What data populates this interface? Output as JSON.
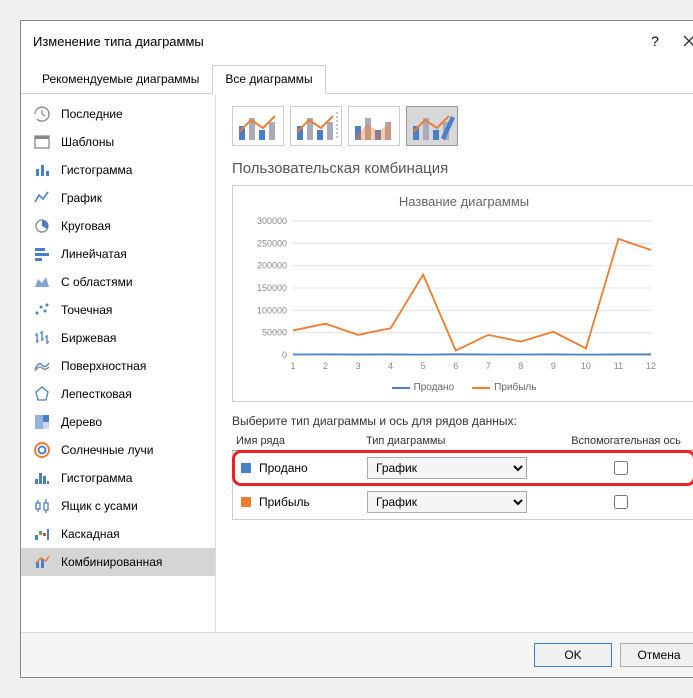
{
  "title": "Изменение типа диаграммы",
  "tabs": {
    "recommended": "Рекомендуемые диаграммы",
    "all": "Все диаграммы",
    "active": "all"
  },
  "sidebar": [
    {
      "label": "Последние",
      "icon": "recent"
    },
    {
      "label": "Шаблоны",
      "icon": "templates"
    },
    {
      "label": "Гистограмма",
      "icon": "column"
    },
    {
      "label": "График",
      "icon": "line"
    },
    {
      "label": "Круговая",
      "icon": "pie"
    },
    {
      "label": "Линейчатая",
      "icon": "bar"
    },
    {
      "label": "С областями",
      "icon": "area"
    },
    {
      "label": "Точечная",
      "icon": "scatter"
    },
    {
      "label": "Биржевая",
      "icon": "stock"
    },
    {
      "label": "Поверхностная",
      "icon": "surface"
    },
    {
      "label": "Лепестковая",
      "icon": "radar"
    },
    {
      "label": "Дерево",
      "icon": "treemap"
    },
    {
      "label": "Солнечные лучи",
      "icon": "sunburst"
    },
    {
      "label": "Гистограмма",
      "icon": "histogram"
    },
    {
      "label": "Ящик с усами",
      "icon": "boxwhisker"
    },
    {
      "label": "Каскадная",
      "icon": "waterfall"
    },
    {
      "label": "Комбинированная",
      "icon": "combo",
      "selected": true
    }
  ],
  "section_title": "Пользовательская комбинация",
  "preview": {
    "title": "Название диаграммы",
    "type": "line",
    "x": [
      1,
      2,
      3,
      4,
      5,
      6,
      7,
      8,
      9,
      10,
      11,
      12
    ],
    "ylim": [
      0,
      300000
    ],
    "ytick_step": 50000,
    "yticks": [
      0,
      50000,
      100000,
      150000,
      200000,
      250000,
      300000
    ],
    "background_color": "#ffffff",
    "grid_color": "#e0e0e0",
    "series": [
      {
        "name": "Продано",
        "color": "#4a7fc9",
        "values": [
          1200,
          1400,
          1000,
          1300,
          900,
          1500,
          1200,
          1100,
          1400,
          800,
          1300,
          1250
        ]
      },
      {
        "name": "Прибыль",
        "color": "#ed7d31",
        "values": [
          55000,
          70000,
          45000,
          60000,
          180000,
          10000,
          45000,
          30000,
          52000,
          15000,
          260000,
          235000
        ]
      }
    ],
    "axis_fontsize": 9,
    "axis_color": "#888888"
  },
  "select_label": "Выберите тип диаграммы и ось для рядов данных:",
  "columns": {
    "name": "Имя ряда",
    "type": "Тип диаграммы",
    "aux": "Вспомогательная ось"
  },
  "rows": [
    {
      "swatch": "#4a7fc9",
      "name": "Продано",
      "type": "График",
      "aux": false,
      "highlight": true
    },
    {
      "swatch": "#ed7d31",
      "name": "Прибыль",
      "type": "График",
      "aux": false
    }
  ],
  "buttons": {
    "ok": "OK",
    "cancel": "Отмена"
  }
}
